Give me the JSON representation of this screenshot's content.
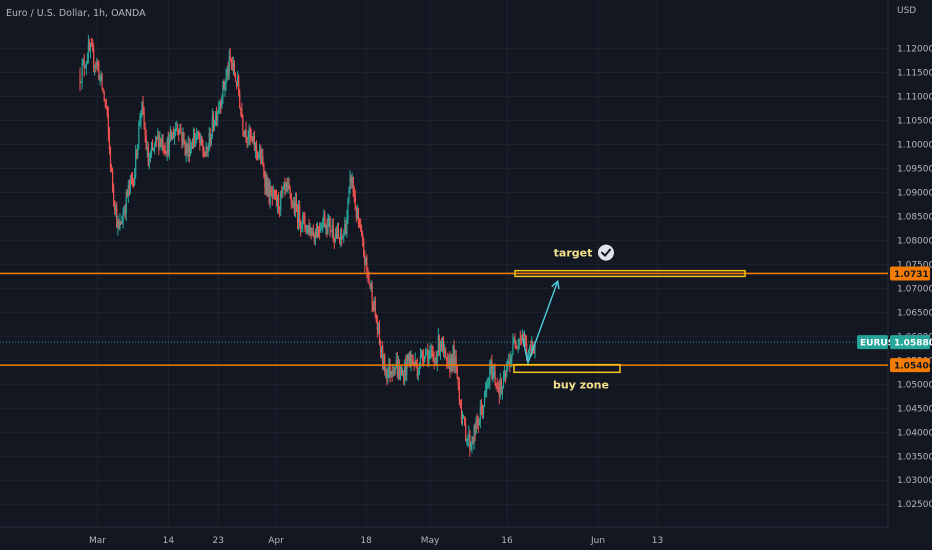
{
  "chart_data": {
    "type": "candlestick",
    "title": "Euro / U.S. Dollar, 1h, OANDA",
    "currency": "USD",
    "symbol": "EURUSD",
    "current_price": "1.05880",
    "ylim": [
      1.0215,
      1.127
    ],
    "y_ticks": [
      "1.02500",
      "1.03000",
      "1.03500",
      "1.04000",
      "1.04500",
      "1.05000",
      "1.05500",
      "1.06000",
      "1.06500",
      "1.07000",
      "1.07500",
      "1.08000",
      "1.08500",
      "1.09000",
      "1.09500",
      "1.10000",
      "1.10500",
      "1.11000",
      "1.11500",
      "1.12000"
    ],
    "x_ticks": [
      "14",
      "Mar",
      "14",
      "23",
      "Apr",
      "18",
      "May",
      "16",
      "Jun",
      "13"
    ],
    "levels": [
      {
        "label": "1.07311",
        "value": 1.07311,
        "color": "#f57c00"
      },
      {
        "label": "1.05400",
        "value": 1.054,
        "color": "#f57c00"
      }
    ],
    "price_path": [
      [
        0.0,
        1.1145
      ],
      [
        0.05,
        1.1195
      ],
      [
        0.1,
        1.1165
      ],
      [
        0.15,
        1.1075
      ],
      [
        0.18,
        1.0935
      ],
      [
        0.22,
        1.0815
      ],
      [
        0.27,
        1.0895
      ],
      [
        0.31,
        1.094
      ],
      [
        0.35,
        1.1085
      ],
      [
        0.39,
        1.096
      ],
      [
        0.45,
        1.1015
      ],
      [
        0.5,
        1.0995
      ],
      [
        0.56,
        1.1045
      ],
      [
        0.61,
        1.0985
      ],
      [
        0.66,
        1.102
      ],
      [
        0.72,
        1.0975
      ],
      [
        0.76,
        1.1045
      ],
      [
        0.81,
        1.1105
      ],
      [
        0.86,
        1.1175
      ],
      [
        0.9,
        1.1125
      ],
      [
        0.93,
        1.1045
      ],
      [
        0.98,
        1.1005
      ],
      [
        1.03,
        1.0975
      ],
      [
        1.08,
        1.0895
      ],
      [
        1.13,
        1.0875
      ],
      [
        1.18,
        1.0905
      ],
      [
        1.23,
        1.0865
      ],
      [
        1.28,
        1.0835
      ],
      [
        1.34,
        1.0815
      ],
      [
        1.39,
        1.0845
      ],
      [
        1.44,
        1.0825
      ],
      [
        1.49,
        1.0795
      ],
      [
        1.52,
        1.0835
      ],
      [
        1.55,
        1.0935
      ],
      [
        1.58,
        1.0855
      ],
      [
        1.61,
        1.0795
      ],
      [
        1.64,
        1.0735
      ],
      [
        1.67,
        1.0685
      ],
      [
        1.7,
        1.0615
      ],
      [
        1.73,
        1.0545
      ],
      [
        1.76,
        1.0525
      ],
      [
        1.8,
        1.0545
      ],
      [
        1.84,
        1.0515
      ],
      [
        1.88,
        1.0555
      ],
      [
        1.93,
        1.0535
      ],
      [
        1.97,
        1.0575
      ],
      [
        2.02,
        1.0545
      ],
      [
        2.06,
        1.0595
      ],
      [
        2.1,
        1.0525
      ],
      [
        2.13,
        1.0565
      ],
      [
        2.16,
        1.0505
      ],
      [
        2.19,
        1.0415
      ],
      [
        2.23,
        1.0375
      ],
      [
        2.27,
        1.0415
      ],
      [
        2.31,
        1.0465
      ],
      [
        2.35,
        1.0535
      ],
      [
        2.38,
        1.0505
      ],
      [
        2.41,
        1.0485
      ],
      [
        2.45,
        1.0545
      ],
      [
        2.49,
        1.0595
      ],
      [
        2.53,
        1.0605
      ],
      [
        2.56,
        1.0555
      ],
      [
        2.58,
        1.0575
      ],
      [
        2.6,
        1.0588
      ]
    ]
  },
  "annotations": {
    "target_label": "target",
    "buy_zone_label": "buy zone",
    "target_zone": {
      "price_low": 1.0725,
      "price_high": 1.0737
    },
    "buy_zone": {
      "price_low": 1.0525,
      "price_high": 1.0541
    },
    "projection_path": [
      [
        2.53,
        1.0595
      ],
      [
        2.56,
        1.0545
      ],
      [
        2.73,
        1.0715
      ]
    ]
  },
  "colors": {
    "background": "#131722",
    "up": "#26a69a",
    "down": "#ef5350",
    "level_line": "#f57c00",
    "zone": "#f5c518",
    "arrow": "#4dd0e1",
    "current_badge": "#26a69a",
    "level_badge": "#f57c00"
  }
}
